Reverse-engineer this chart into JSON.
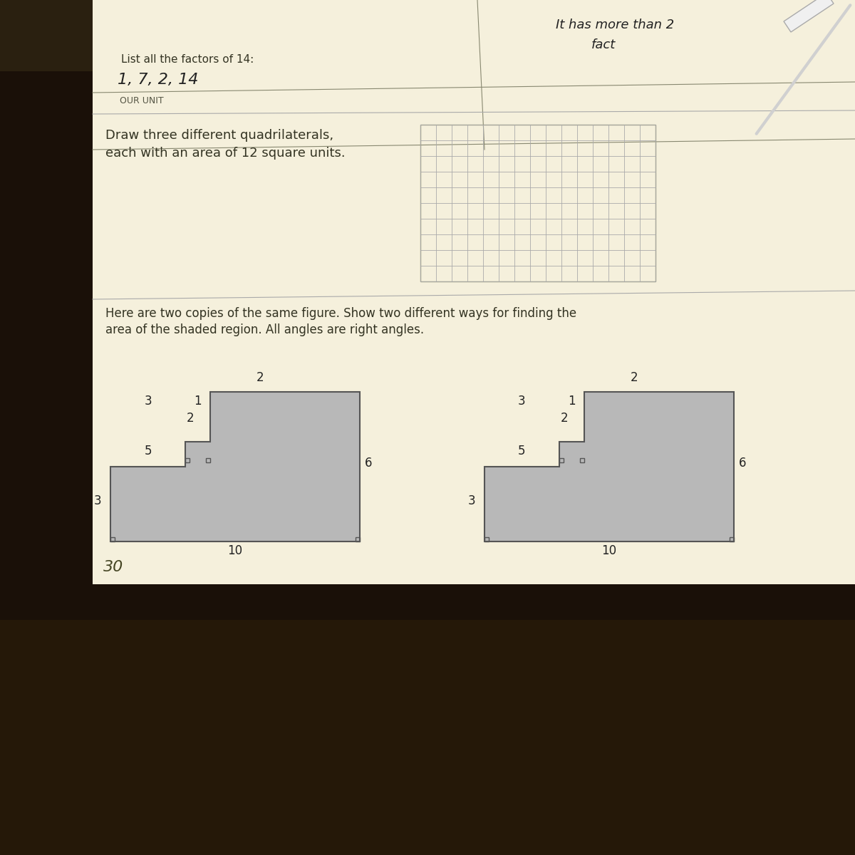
{
  "bg_color": "#e8e0c8",
  "paper_color": "#f5f0dc",
  "dark_bg": "#1a1008",
  "title_factors": "List all the factors of 14:",
  "answer_factors": "1, 7, 2, 14",
  "label_our_unit": "OUR UNIT",
  "title_quad": "Draw three different quadrilaterals,\neach with an area of 12 square units.",
  "title_copies": "Here are two copies of the same figure. Show two different ways for finding the\narea of the shaded region. All angles are right angles.",
  "handwritten_answer": "30",
  "handwritten_answer2": "It has more than 2\nfact",
  "grid_rows": 10,
  "grid_cols": 15,
  "shape_fill": "#b8b8b8",
  "shape_stroke": "#555555",
  "paper_line": "#ccccaa"
}
